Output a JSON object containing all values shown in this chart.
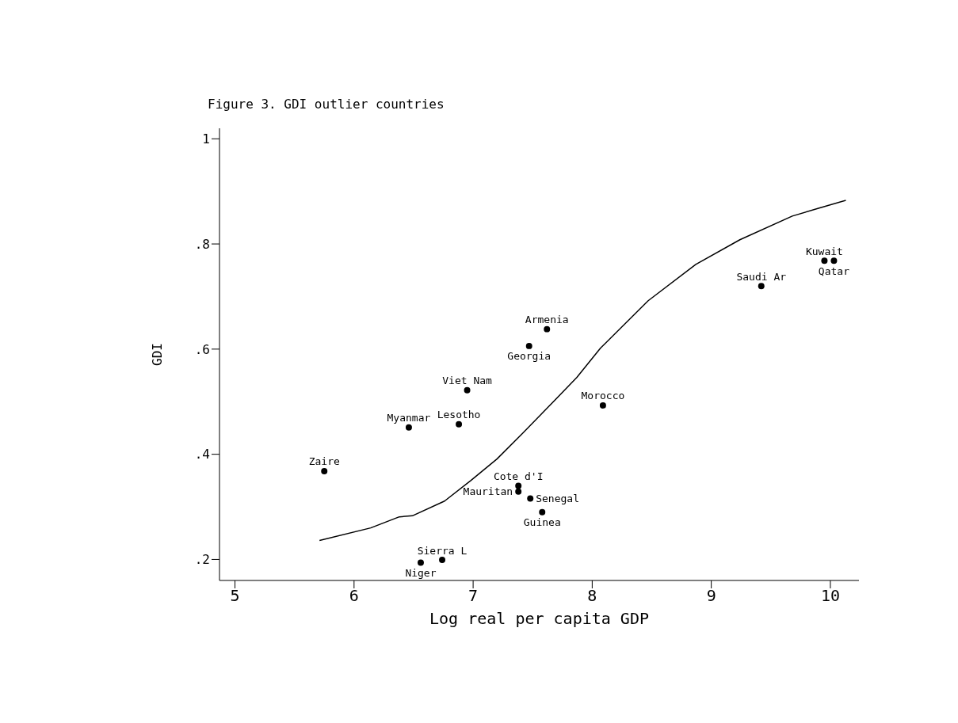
{
  "chart_data": {
    "type": "scatter",
    "title": "Figure 3. GDI outlier countries",
    "xlabel": "Log real per capita GDP",
    "ylabel": "GDI",
    "xlim": [
      4.87,
      10.24
    ],
    "xticks": [
      5,
      6,
      7,
      8,
      9,
      10
    ],
    "ylim": [
      0.16,
      1.02
    ],
    "yticks": [
      {
        "value": 0.2,
        "label": ".2"
      },
      {
        "value": 0.4,
        "label": ".4"
      },
      {
        "value": 0.6,
        "label": ".6"
      },
      {
        "value": 0.8,
        "label": ".8"
      },
      1
    ],
    "grid": false,
    "legend": false,
    "marker": "circle",
    "series": [
      {
        "color": "#000000",
        "x": [
          5.75,
          6.46,
          6.88,
          6.95,
          7.62,
          7.47,
          8.09,
          9.42,
          9.95,
          10.03,
          7.38,
          7.38,
          7.48,
          7.58,
          6.74,
          6.56
        ],
        "values": [
          0.368,
          0.451,
          0.457,
          0.522,
          0.638,
          0.606,
          0.493,
          0.72,
          0.768,
          0.768,
          0.34,
          0.329,
          0.316,
          0.29,
          0.199,
          0.194
        ],
        "value_labels": [
          "Zaire",
          "Myanmar",
          "Lesotho",
          "Viet Nam",
          "Armenia",
          "Georgia",
          "Morocco",
          "Saudi Ar",
          "Kuwait",
          "Qatar",
          "Cote d'I",
          "Mauritan",
          "Senegal",
          "Guinea",
          "Sierra L",
          "Niger"
        ]
      },
      {
        "type": "line",
        "color": "#000000",
        "line_style": "solid",
        "marker": "none",
        "x": [
          5.71,
          6.14,
          6.38,
          6.49,
          6.76,
          6.98,
          7.2,
          7.42,
          7.64,
          7.87,
          8.07,
          8.47,
          8.87,
          9.24,
          9.68,
          9.9,
          10.13
        ],
        "values": [
          0.236,
          0.26,
          0.281,
          0.283,
          0.311,
          0.35,
          0.391,
          0.441,
          0.492,
          0.546,
          0.602,
          0.692,
          0.761,
          0.808,
          0.853,
          0.868,
          0.883
        ]
      }
    ]
  }
}
